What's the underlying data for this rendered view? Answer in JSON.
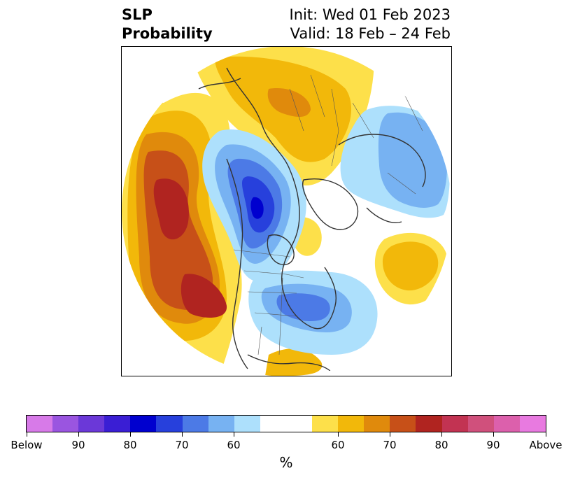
{
  "title": {
    "left_line1": "SLP",
    "left_line2": "Probability",
    "right_line1": "Init: Wed 01 Feb 2023",
    "right_line2": "Valid: 18 Feb – 24 Feb"
  },
  "colorbar": {
    "units": "%",
    "colors": [
      "#d77ae8",
      "#9a55e0",
      "#6b38d8",
      "#3a1ed4",
      "#0000cf",
      "#2740dc",
      "#4c7ae6",
      "#77b2f2",
      "#ade0fc",
      "#ffffff",
      "#ffffff",
      "#fde04a",
      "#f2b80a",
      "#e08a0c",
      "#c75018",
      "#b02420",
      "#c23352",
      "#d0507c",
      "#dc60ac",
      "#e87ae0"
    ],
    "tick_labels": [
      "Below",
      "90",
      "80",
      "70",
      "60",
      "60",
      "70",
      "80",
      "90",
      "Above"
    ]
  }
}
